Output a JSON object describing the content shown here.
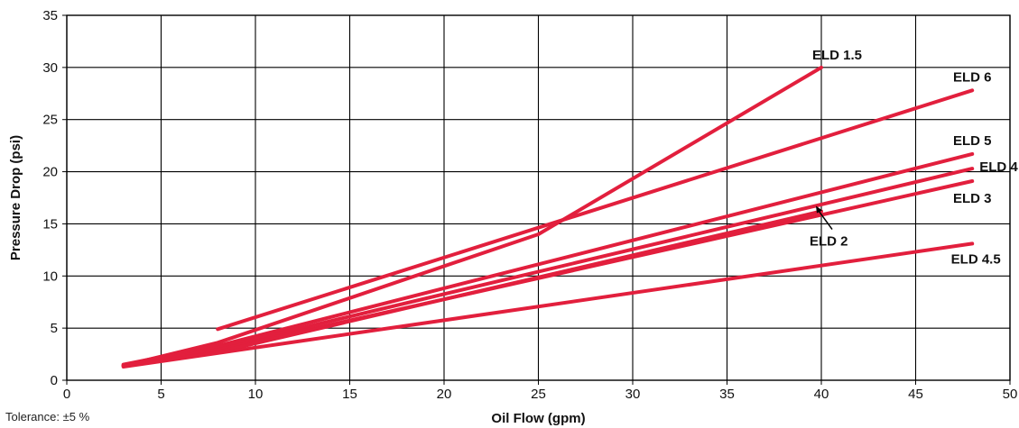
{
  "chart_data": {
    "type": "line",
    "title": "",
    "xlabel": "Oil Flow (gpm)",
    "ylabel": "Pressure Drop (psi)",
    "xlim": [
      0,
      50
    ],
    "ylim": [
      0,
      35
    ],
    "xticks": [
      0,
      5,
      10,
      15,
      20,
      25,
      30,
      35,
      40,
      45,
      50
    ],
    "yticks": [
      0,
      5,
      10,
      15,
      20,
      25,
      30,
      35
    ],
    "grid": true,
    "legend": "none (series labeled at line ends)",
    "line_color": "#e21f3d",
    "series": [
      {
        "name": "ELD 1.5",
        "x": [
          3,
          8,
          25,
          40
        ],
        "y": [
          1.4,
          3.6,
          14,
          30
        ]
      },
      {
        "name": "ELD 6",
        "x": [
          8,
          48
        ],
        "y": [
          4.9,
          27.8
        ]
      },
      {
        "name": "ELD 5",
        "x": [
          3,
          8,
          48
        ],
        "y": [
          1.5,
          3.3,
          21.7
        ]
      },
      {
        "name": "ELD 4",
        "x": [
          3,
          8,
          48
        ],
        "y": [
          1.4,
          3.1,
          20.3
        ]
      },
      {
        "name": "ELD 3",
        "x": [
          3,
          8,
          48
        ],
        "y": [
          1.4,
          2.9,
          19.1
        ]
      },
      {
        "name": "ELD 2",
        "x": [
          3,
          8,
          40
        ],
        "y": [
          1.4,
          2.7,
          16.2
        ]
      },
      {
        "name": "ELD 4.5",
        "x": [
          3,
          48
        ],
        "y": [
          1.3,
          13.1
        ]
      }
    ]
  },
  "tolerance_note": "Tolerance: ±5 %"
}
